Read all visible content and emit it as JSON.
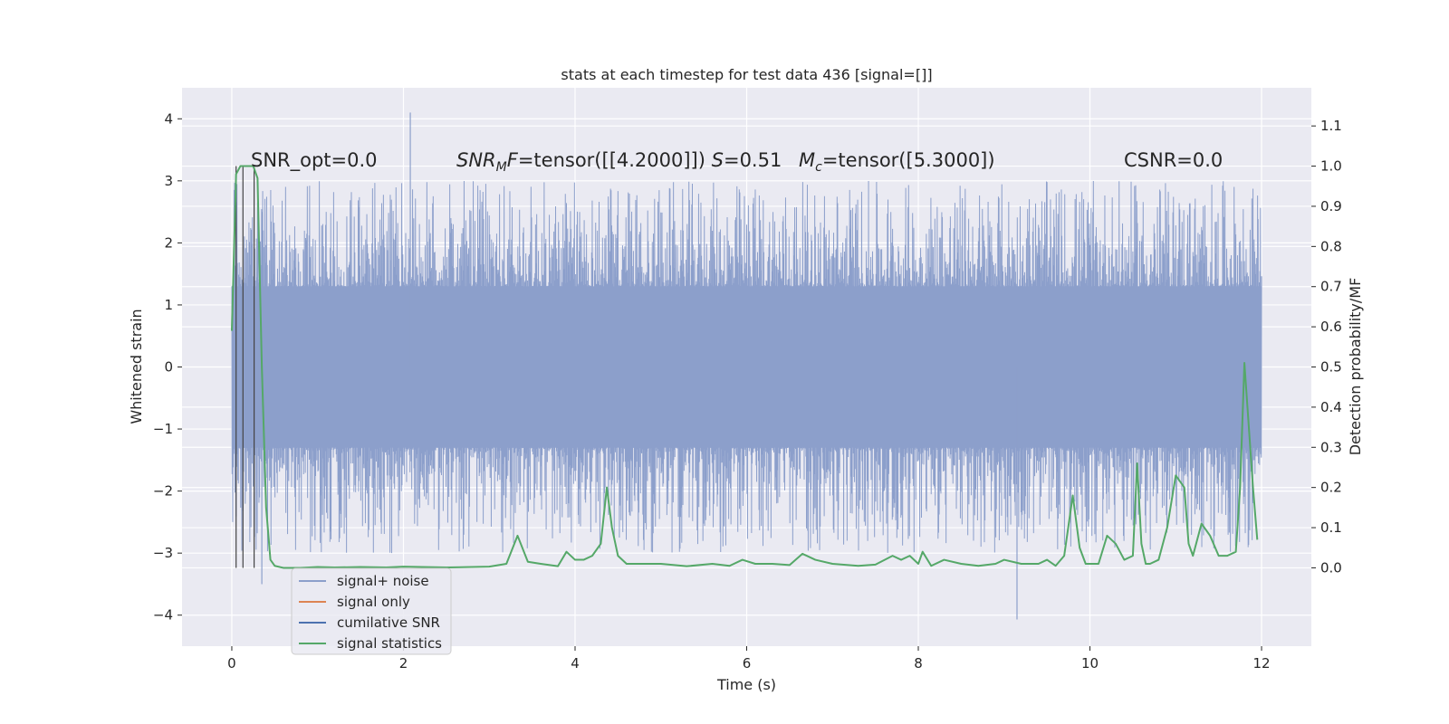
{
  "chart_data": {
    "type": "line",
    "title": "stats at each timestep for test data 436 [signal=[]]",
    "xlabel": "Time (s)",
    "ylabel": "Whitened strain",
    "y2label": "Detection probability/MF",
    "xlim": [
      -0.58,
      12.58
    ],
    "ylim": [
      -4.5,
      4.5
    ],
    "y2lim": [
      -0.195,
      1.195
    ],
    "xticks": [
      0,
      2,
      4,
      6,
      8,
      10,
      12
    ],
    "yticks": [
      4,
      3,
      2,
      1,
      0,
      -1,
      -2,
      -3,
      -4
    ],
    "y2ticks": [
      1.1,
      1.0,
      0.9,
      0.8,
      0.7,
      0.6,
      0.5,
      0.4,
      0.3,
      0.2,
      0.1,
      0.0
    ],
    "grid": true,
    "legend_position": "lower-left",
    "annotations": [
      {
        "key": "snr_opt",
        "text": "SNR_opt=0.0"
      },
      {
        "key": "snr_mf",
        "text": "SNR_MF=tensor([[4.2000]])  S=0.51"
      },
      {
        "key": "mc",
        "text": "M_c=tensor([5.3000])"
      },
      {
        "key": "csnr",
        "text": "CSNR=0.0"
      }
    ],
    "vertical_markers_x": [
      0.05,
      0.13,
      0.26
    ],
    "series": [
      {
        "name": "signal+ noise",
        "axis": "left",
        "color": "#8c9fcb",
        "style": "dense noise trace, band roughly -1.3 to 1.3 with spikes up to about ±3",
        "peaks": {
          "x": [
            2.08,
            9.15,
            0.35
          ],
          "y": [
            4.1,
            -4.07,
            -3.5
          ]
        },
        "x_range": [
          0,
          12
        ]
      },
      {
        "name": "signal only",
        "axis": "left",
        "color": "#dd8452",
        "x": [],
        "y": []
      },
      {
        "name": "cumilative SNR",
        "axis": "left",
        "color": "#4c72b0",
        "x": [],
        "y": []
      },
      {
        "name": "signal statistics",
        "axis": "right",
        "color": "#55a868",
        "x": [
          0.0,
          0.05,
          0.1,
          0.15,
          0.2,
          0.25,
          0.3,
          0.35,
          0.4,
          0.45,
          0.5,
          0.6,
          0.8,
          1.0,
          1.2,
          1.5,
          1.8,
          2.0,
          2.5,
          3.0,
          3.2,
          3.33,
          3.45,
          3.6,
          3.8,
          3.9,
          4.0,
          4.1,
          4.2,
          4.3,
          4.37,
          4.43,
          4.5,
          4.6,
          5.0,
          5.3,
          5.6,
          5.8,
          5.95,
          6.1,
          6.3,
          6.5,
          6.65,
          6.8,
          7.0,
          7.3,
          7.5,
          7.7,
          7.8,
          7.9,
          8.0,
          8.05,
          8.15,
          8.3,
          8.5,
          8.7,
          8.9,
          9.0,
          9.2,
          9.4,
          9.5,
          9.6,
          9.7,
          9.8,
          9.88,
          9.95,
          10.0,
          10.1,
          10.2,
          10.3,
          10.4,
          10.5,
          10.55,
          10.6,
          10.65,
          10.7,
          10.8,
          10.9,
          11.0,
          11.1,
          11.15,
          11.2,
          11.3,
          11.4,
          11.5,
          11.6,
          11.7,
          11.75,
          11.8,
          11.9,
          11.95
        ],
        "y": [
          0.59,
          0.98,
          1.0,
          1.0,
          1.0,
          1.0,
          0.97,
          0.5,
          0.15,
          0.02,
          0.005,
          0.0,
          0.0,
          0.002,
          0.001,
          0.002,
          0.001,
          0.003,
          0.001,
          0.003,
          0.01,
          0.08,
          0.015,
          0.01,
          0.004,
          0.04,
          0.02,
          0.02,
          0.03,
          0.06,
          0.2,
          0.1,
          0.03,
          0.01,
          0.01,
          0.004,
          0.01,
          0.005,
          0.02,
          0.01,
          0.01,
          0.007,
          0.035,
          0.02,
          0.01,
          0.005,
          0.008,
          0.03,
          0.02,
          0.03,
          0.01,
          0.04,
          0.005,
          0.02,
          0.01,
          0.005,
          0.01,
          0.02,
          0.01,
          0.01,
          0.02,
          0.005,
          0.03,
          0.18,
          0.05,
          0.01,
          0.01,
          0.01,
          0.08,
          0.06,
          0.02,
          0.03,
          0.26,
          0.06,
          0.01,
          0.01,
          0.02,
          0.1,
          0.23,
          0.2,
          0.06,
          0.03,
          0.11,
          0.08,
          0.03,
          0.03,
          0.04,
          0.2,
          0.51,
          0.2,
          0.07
        ]
      }
    ]
  }
}
